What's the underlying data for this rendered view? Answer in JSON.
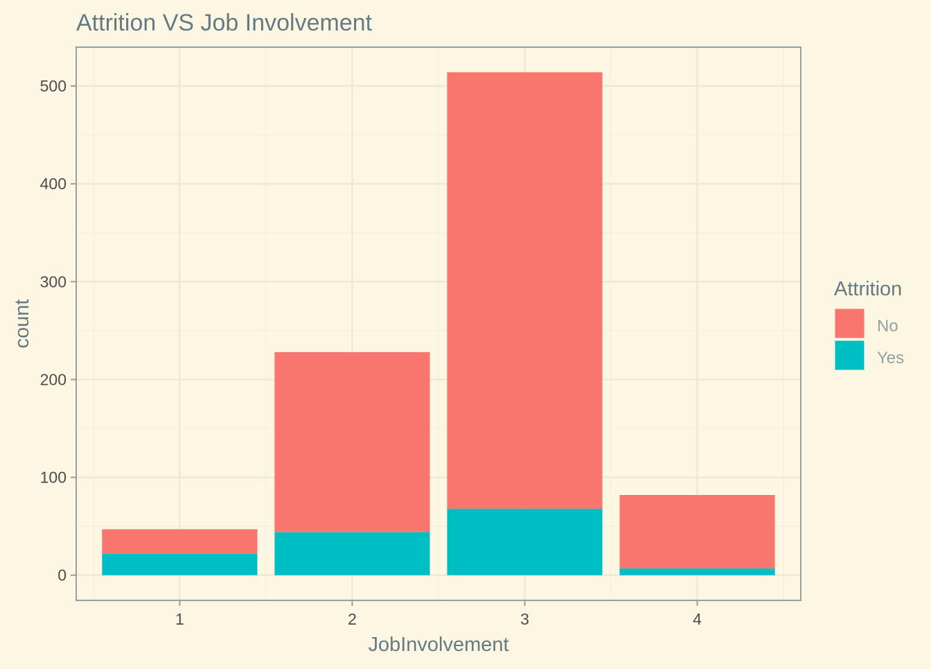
{
  "colors": {
    "background": "#fdf6e3",
    "panel_border": "#93a1a1",
    "grid_major": "#eee8d5",
    "grid_minor": "#f3edda",
    "title_text": "#657b83",
    "tick_text": "#4d4d4d",
    "legend_label_text": "#93a1a1",
    "no": "#f8766d",
    "yes": "#00bfc4"
  },
  "chart_data": {
    "type": "bar",
    "stacked": true,
    "title": "Attrition VS Job Involvement",
    "xlabel": "JobInvolvement",
    "ylabel": "count",
    "categories": [
      "1",
      "2",
      "3",
      "4"
    ],
    "series": [
      {
        "name": "No",
        "values": [
          25,
          184,
          446,
          75
        ]
      },
      {
        "name": "Yes",
        "values": [
          22,
          44,
          68,
          7
        ]
      }
    ],
    "stack_order": [
      "Yes",
      "No"
    ],
    "ylim": [
      -25.7,
      539.7
    ],
    "yticks": [
      0,
      100,
      200,
      300,
      400,
      500
    ],
    "yticks_minor": [
      50,
      150,
      250,
      350,
      450
    ],
    "legend": {
      "title": "Attrition",
      "position": "right",
      "entries": [
        "No",
        "Yes"
      ]
    },
    "grid": true
  }
}
